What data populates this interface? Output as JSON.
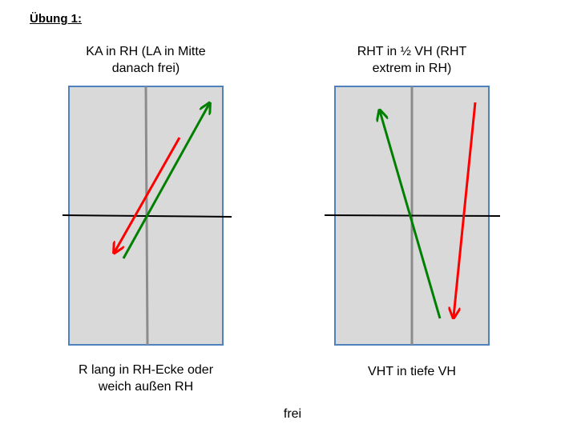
{
  "title": "Übung 1:",
  "diagrams": [
    {
      "top_caption": [
        "KA in RH (LA in Mitte",
        "danach frei)"
      ],
      "bottom_caption": [
        "R lang in RH-Ecke oder",
        "weich außen RH"
      ]
    },
    {
      "top_caption": [
        "RHT in ½ VH (RHT",
        "extrem in RH)"
      ],
      "bottom_caption": [
        "VHT in tiefe VH"
      ]
    }
  ],
  "footer": "frei",
  "colors": {
    "court_fill": "#d9d9d9",
    "court_border": "#4f81bd",
    "center_line": "#8c8c8c",
    "net": "#000000",
    "arrow_red": "#ff0000",
    "arrow_green": "#008000"
  }
}
